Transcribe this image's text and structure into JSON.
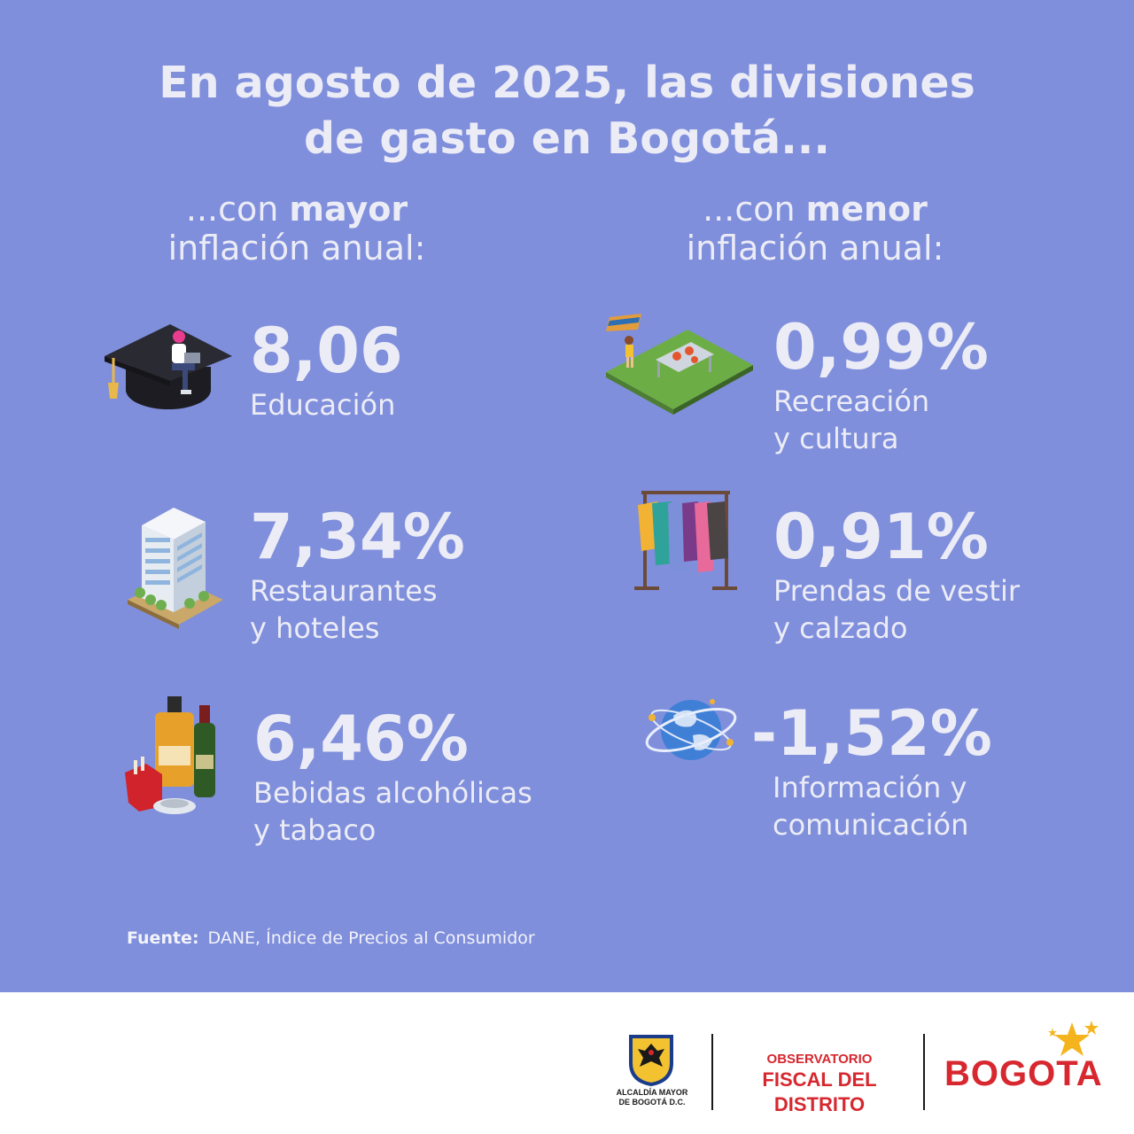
{
  "title": {
    "line1": "En agosto de 2025, las divisiones",
    "line2": "de gasto en Bogotá..."
  },
  "left_column": {
    "heading_prefix": "...con ",
    "heading_bold": "mayor",
    "heading_line2": "inflación anual:",
    "items": [
      {
        "value": "8,06",
        "label_line1": "Educación",
        "label_line2": "",
        "icon": "graduation-cap-icon"
      },
      {
        "value": "7,34%",
        "label_line1": "Restaurantes",
        "label_line2": "y hoteles",
        "icon": "hotel-building-icon"
      },
      {
        "value": "6,46%",
        "label_line1": "Bebidas alcohólicas",
        "label_line2": "y tabaco",
        "icon": "liquor-tobacco-icon"
      }
    ]
  },
  "right_column": {
    "heading_prefix": "...con ",
    "heading_bold": "menor",
    "heading_line2": "inflación anual:",
    "items": [
      {
        "value": "0,99%",
        "label_line1": "Recreación",
        "label_line2": "y cultura",
        "icon": "picnic-park-icon"
      },
      {
        "value": "0,91%",
        "label_line1": "Prendas de vestir",
        "label_line2": "y calzado",
        "icon": "clothing-rack-icon"
      },
      {
        "value": "-1,52%",
        "label_line1": "Información y",
        "label_line2": "comunicación",
        "icon": "globe-network-icon"
      }
    ]
  },
  "source": {
    "label": "Fuente:",
    "text": "DANE, Índice de Precios al Consumidor"
  },
  "footer": {
    "alcaldia_line1": "ALCALDÍA MAYOR",
    "alcaldia_line2": "DE BOGOTÁ D.C.",
    "observatorio_line1": "OBSERVATORIO",
    "observatorio_line2": "FISCAL DEL DISTRITO",
    "bogota_logo": "BOGOTA"
  },
  "colors": {
    "background": "#7f8fdc",
    "text": "#ececf6",
    "brand_red": "#d7272f",
    "star_yellow": "#f5b41e"
  }
}
